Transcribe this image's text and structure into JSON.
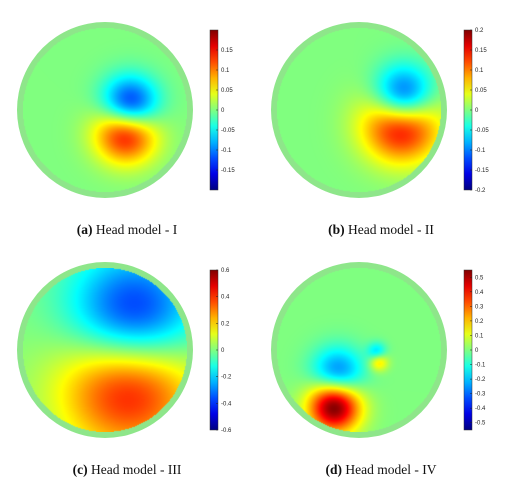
{
  "colors": {
    "rim": "#8ee68a",
    "background": "#ffffff",
    "text": "#111111"
  },
  "colormap": "jet",
  "chart_data": [
    {
      "type": "heatmap",
      "panel_label": "(a)",
      "caption": "Head model - I",
      "clim": [
        -0.2,
        0.2
      ],
      "ticks": [
        "0.15",
        "0.1",
        "0.05",
        "0",
        "-0.05",
        "-0.1",
        "-0.15"
      ],
      "tick_values": [
        0.15,
        0.1,
        0.05,
        0,
        -0.05,
        -0.1,
        -0.15
      ],
      "sources": [
        {
          "u": 0.3,
          "v": -0.03,
          "value": -0.2,
          "sigma": 0.24
        },
        {
          "u": 0.26,
          "v": 0.24,
          "value": 0.2,
          "sigma": 0.26
        }
      ]
    },
    {
      "type": "heatmap",
      "panel_label": "(b)",
      "caption": "Head model - II",
      "clim": [
        -0.2,
        0.2
      ],
      "ticks": [
        "0.2",
        "0.15",
        "0.1",
        "0.05",
        "0",
        "-0.05",
        "-0.1",
        "-0.15",
        "-0.2"
      ],
      "tick_values": [
        0.2,
        0.15,
        0.1,
        0.05,
        0,
        -0.05,
        -0.1,
        -0.15,
        -0.2
      ],
      "sources": [
        {
          "u": 0.54,
          "v": -0.14,
          "value": -0.21,
          "sigma": 0.26
        },
        {
          "u": 0.52,
          "v": 0.13,
          "value": 0.21,
          "sigma": 0.32
        }
      ]
    },
    {
      "type": "heatmap",
      "panel_label": "(c)",
      "caption": "Head model - III",
      "clim": [
        -0.6,
        0.6
      ],
      "ticks": [
        "0.6",
        "0.4",
        "0.2",
        "0",
        "-0.2",
        "-0.4",
        "-0.6"
      ],
      "tick_values": [
        0.6,
        0.4,
        0.2,
        0,
        -0.2,
        -0.4,
        -0.6
      ],
      "sources": [
        {
          "u": 0.34,
          "v": -0.3,
          "value": -0.62,
          "sigma": 0.55
        },
        {
          "u": 0.3,
          "v": 0.32,
          "value": 0.62,
          "sigma": 0.58
        }
      ]
    },
    {
      "type": "heatmap",
      "panel_label": "(d)",
      "caption": "Head model - IV",
      "clim": [
        -0.55,
        0.55
      ],
      "ticks": [
        "0.5",
        "0.4",
        "0.3",
        "0.2",
        "0.1",
        "0",
        "-0.1",
        "-0.2",
        "-0.3",
        "-0.4",
        "-0.5"
      ],
      "tick_values": [
        0.5,
        0.4,
        0.3,
        0.2,
        0.1,
        0,
        -0.1,
        -0.2,
        -0.3,
        -0.4,
        -0.5
      ],
      "sources": [
        {
          "u": -0.26,
          "v": 0.3,
          "value": -0.32,
          "sigma": 0.22
        },
        {
          "u": -0.3,
          "v": 0.68,
          "value": 0.6,
          "sigma": 0.22
        },
        {
          "u": 0.22,
          "v": 0.03,
          "value": -0.2,
          "sigma": 0.08
        },
        {
          "u": 0.24,
          "v": 0.14,
          "value": 0.22,
          "sigma": 0.08
        }
      ]
    }
  ]
}
